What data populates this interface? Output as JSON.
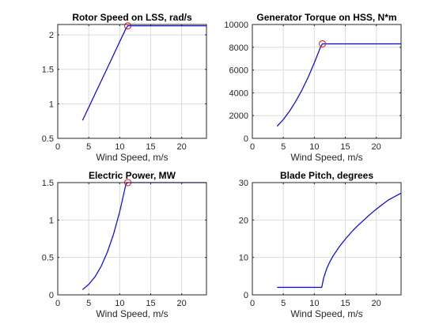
{
  "chart_data": [
    {
      "type": "line",
      "title": "Rotor Speed on LSS, rad/s",
      "xlabel": "Wind Speed, m/s",
      "ylabel": "",
      "xlim": [
        0,
        24
      ],
      "ylim": [
        0.5,
        2.15
      ],
      "xticks": [
        0,
        5,
        10,
        15,
        20
      ],
      "yticks": [
        0.5,
        1,
        1.5,
        2
      ],
      "ytick_labels": [
        "0.5",
        "1",
        "1.5",
        "2"
      ],
      "grid": true,
      "x": [
        4,
        5,
        6,
        7,
        8,
        9,
        10,
        11,
        11.3,
        12,
        14,
        16,
        18,
        20,
        22,
        24
      ],
      "y": [
        0.76,
        0.95,
        1.14,
        1.33,
        1.52,
        1.71,
        1.9,
        2.09,
        2.13,
        2.13,
        2.13,
        2.13,
        2.13,
        2.13,
        2.13,
        2.13
      ],
      "marker": {
        "x": 11.3,
        "y": 2.13
      }
    },
    {
      "type": "line",
      "title": "Generator Torque on HSS, N*m",
      "xlabel": "Wind Speed, m/s",
      "ylabel": "",
      "xlim": [
        0,
        24
      ],
      "ylim": [
        0,
        10000
      ],
      "xticks": [
        0,
        5,
        10,
        15,
        20
      ],
      "yticks": [
        0,
        2000,
        4000,
        6000,
        8000,
        10000
      ],
      "ytick_labels": [
        "0",
        "2000",
        "4000",
        "6000",
        "8000",
        "10000"
      ],
      "grid": true,
      "x": [
        4,
        5,
        6,
        7,
        8,
        9,
        10,
        11,
        11.3,
        12,
        14,
        16,
        18,
        20,
        22,
        24
      ],
      "y": [
        1060,
        1660,
        2390,
        3250,
        4240,
        5370,
        6630,
        8020,
        8300,
        8300,
        8300,
        8300,
        8300,
        8300,
        8300,
        8300
      ],
      "marker": {
        "x": 11.3,
        "y": 8300
      }
    },
    {
      "type": "line",
      "title": "Electric Power, MW",
      "xlabel": "Wind Speed, m/s",
      "ylabel": "",
      "xlim": [
        0,
        24
      ],
      "ylim": [
        0,
        1.5
      ],
      "xticks": [
        0,
        5,
        10,
        15,
        20
      ],
      "yticks": [
        0,
        0.5,
        1,
        1.5
      ],
      "ytick_labels": [
        "0",
        "0.5",
        "1",
        "1.5"
      ],
      "grid": true,
      "x": [
        4,
        5,
        6,
        7,
        8,
        9,
        10,
        11,
        11.3,
        12,
        14,
        16,
        18,
        20,
        22,
        24
      ],
      "y": [
        0.07,
        0.14,
        0.24,
        0.38,
        0.57,
        0.81,
        1.11,
        1.48,
        1.5,
        1.5,
        1.5,
        1.5,
        1.5,
        1.5,
        1.5,
        1.5
      ],
      "marker": {
        "x": 11.3,
        "y": 1.5
      }
    },
    {
      "type": "line",
      "title": "Blade Pitch, degrees",
      "xlabel": "Wind Speed, m/s",
      "ylabel": "",
      "xlim": [
        0,
        24
      ],
      "ylim": [
        0,
        30
      ],
      "xticks": [
        0,
        5,
        10,
        15,
        20
      ],
      "yticks": [
        0,
        10,
        20,
        30
      ],
      "ytick_labels": [
        "0",
        "10",
        "20",
        "30"
      ],
      "grid": true,
      "x": [
        4,
        6,
        8,
        10,
        11.2,
        11.5,
        12,
        12.5,
        13,
        14,
        15,
        16,
        17,
        18,
        19,
        20,
        21,
        22,
        23,
        24
      ],
      "y": [
        2,
        2,
        2,
        2,
        2,
        4.5,
        7,
        8.8,
        10.3,
        12.8,
        14.9,
        16.8,
        18.5,
        20,
        21.5,
        22.9,
        24.2,
        25.4,
        26.3,
        27.2
      ]
    }
  ]
}
